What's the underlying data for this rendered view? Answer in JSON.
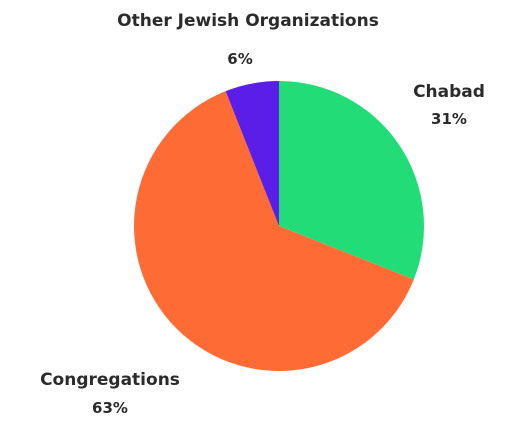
{
  "chart_data": {
    "type": "pie",
    "title": "",
    "start_angle_deg": 0,
    "direction": "clockwise",
    "slices": [
      {
        "label": "Chabad",
        "value": 31,
        "value_label": "31%",
        "color": "#22dd77"
      },
      {
        "label": "Congregations",
        "value": 63,
        "value_label": "63%",
        "color": "#ff6b35"
      },
      {
        "label": "Other Jewish Organizations",
        "value": 6,
        "value_label": "6%",
        "color": "#5b1de8"
      }
    ]
  }
}
